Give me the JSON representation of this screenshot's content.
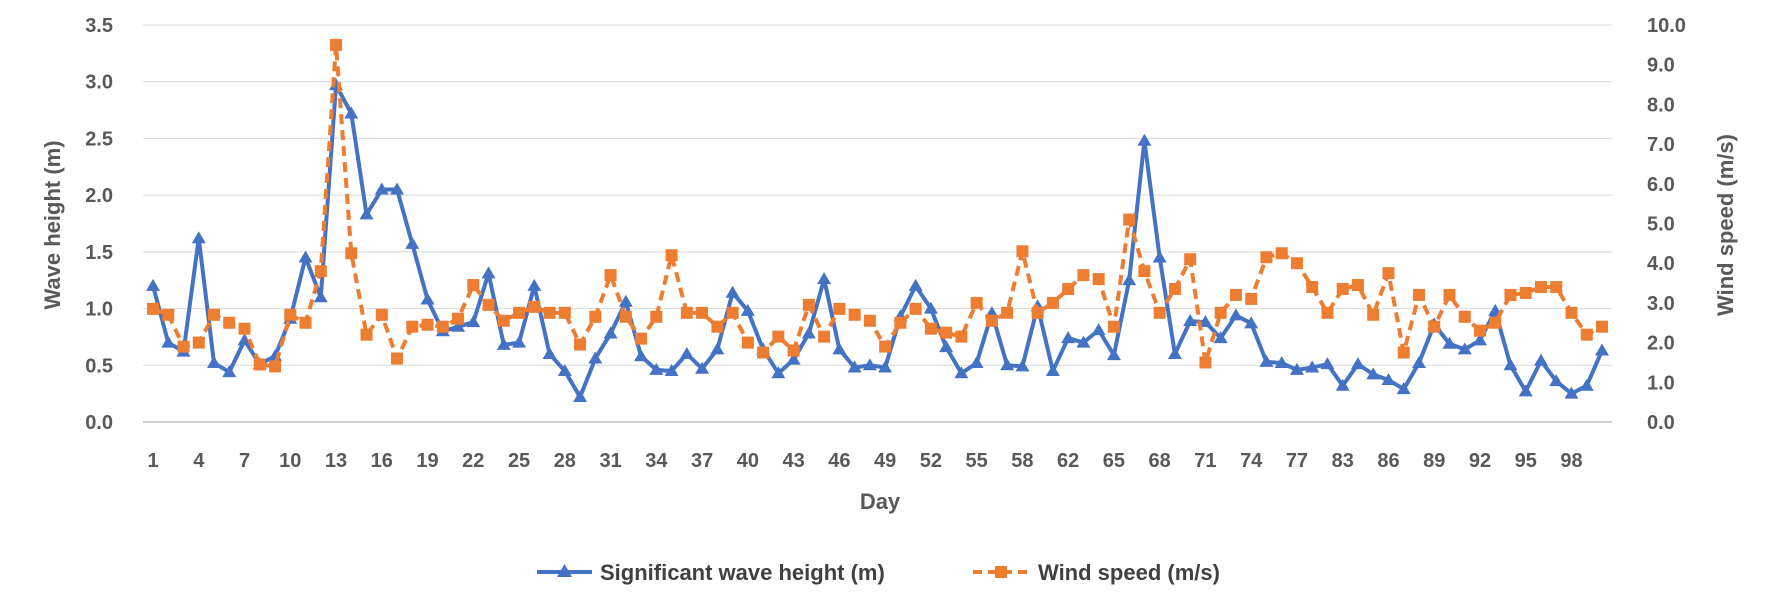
{
  "chart_data": {
    "type": "line",
    "xlabel": "Day",
    "ylabel_left": "Wave height (m)",
    "ylabel_right": "Wind speed (m/s)",
    "ylim_left": [
      0,
      3.5
    ],
    "ylim_right": [
      0,
      10
    ],
    "yticks_left": [
      "0.0",
      "0.5",
      "1.0",
      "1.5",
      "2.0",
      "2.5",
      "3.0",
      "3.5"
    ],
    "yticks_right": [
      "0.0",
      "1.0",
      "2.0",
      "3.0",
      "4.0",
      "5.0",
      "6.0",
      "7.0",
      "8.0",
      "9.0",
      "10.0"
    ],
    "xtick_labels": [
      "1",
      "4",
      "7",
      "10",
      "13",
      "16",
      "19",
      "22",
      "25",
      "28",
      "31",
      "34",
      "37",
      "40",
      "43",
      "46",
      "49",
      "52",
      "55",
      "58",
      "62",
      "65",
      "68",
      "71",
      "74",
      "77",
      "83",
      "86",
      "89",
      "92",
      "95",
      "98"
    ],
    "grid": "horizontal",
    "legend_position": "bottom",
    "colors": {
      "wave": "#4472C4",
      "wind": "#ED7D31",
      "grid": "#D9D9D9",
      "axis": "#BFBFBF"
    },
    "series": [
      {
        "name": "Significant wave height (m)",
        "axis": "left",
        "style": "solid-triangle",
        "values": [
          1.2,
          0.7,
          0.62,
          1.62,
          0.52,
          0.44,
          0.72,
          0.51,
          0.58,
          0.91,
          1.45,
          1.1,
          2.97,
          2.72,
          1.83,
          2.05,
          2.05,
          1.57,
          1.08,
          0.8,
          0.84,
          0.88,
          1.31,
          0.68,
          0.7,
          1.2,
          0.6,
          0.45,
          0.22,
          0.56,
          0.78,
          1.06,
          0.58,
          0.46,
          0.45,
          0.6,
          0.47,
          0.64,
          1.14,
          0.98,
          0.64,
          0.43,
          0.55,
          0.78,
          1.26,
          0.64,
          0.48,
          0.5,
          0.48,
          0.93,
          1.2,
          1.0,
          0.66,
          0.43,
          0.52,
          0.96,
          0.5,
          0.49,
          1.02,
          0.45,
          0.74,
          0.7,
          0.81,
          0.59,
          1.25,
          2.48,
          1.45,
          0.6,
          0.89,
          0.88,
          0.74,
          0.94,
          0.87,
          0.53,
          0.52,
          0.46,
          0.48,
          0.51,
          0.32,
          0.51,
          0.42,
          0.37,
          0.29,
          0.52,
          0.86,
          0.69,
          0.64,
          0.72,
          0.98,
          0.5,
          0.27,
          0.54,
          0.36,
          0.25,
          0.32,
          0.63
        ]
      },
      {
        "name": "Wind speed (m/s)",
        "axis": "right",
        "style": "dashed-square",
        "values": [
          2.85,
          2.7,
          1.9,
          2.0,
          2.7,
          2.5,
          2.35,
          1.45,
          1.4,
          2.7,
          2.5,
          3.8,
          9.5,
          4.25,
          2.2,
          2.7,
          1.6,
          2.4,
          2.45,
          2.4,
          2.6,
          3.45,
          2.95,
          2.55,
          2.75,
          2.9,
          2.75,
          2.75,
          1.95,
          2.65,
          3.7,
          2.65,
          2.1,
          2.65,
          4.2,
          2.75,
          2.75,
          2.4,
          2.75,
          2.0,
          1.75,
          2.15,
          1.8,
          2.95,
          2.15,
          2.85,
          2.7,
          2.55,
          1.9,
          2.5,
          2.85,
          2.35,
          2.25,
          2.15,
          3.0,
          2.55,
          2.75,
          4.3,
          2.75,
          3.0,
          3.35,
          3.7,
          3.6,
          2.4,
          5.1,
          3.8,
          2.75,
          3.35,
          4.1,
          1.5,
          2.75,
          3.2,
          3.1,
          4.15,
          4.25,
          4.0,
          3.4,
          2.75,
          3.35,
          3.45,
          2.7,
          3.75,
          1.75,
          3.2,
          2.4,
          3.2,
          2.65,
          2.3,
          2.5,
          3.2,
          3.25,
          3.4,
          3.4,
          2.75,
          2.2,
          2.4
        ]
      }
    ]
  }
}
